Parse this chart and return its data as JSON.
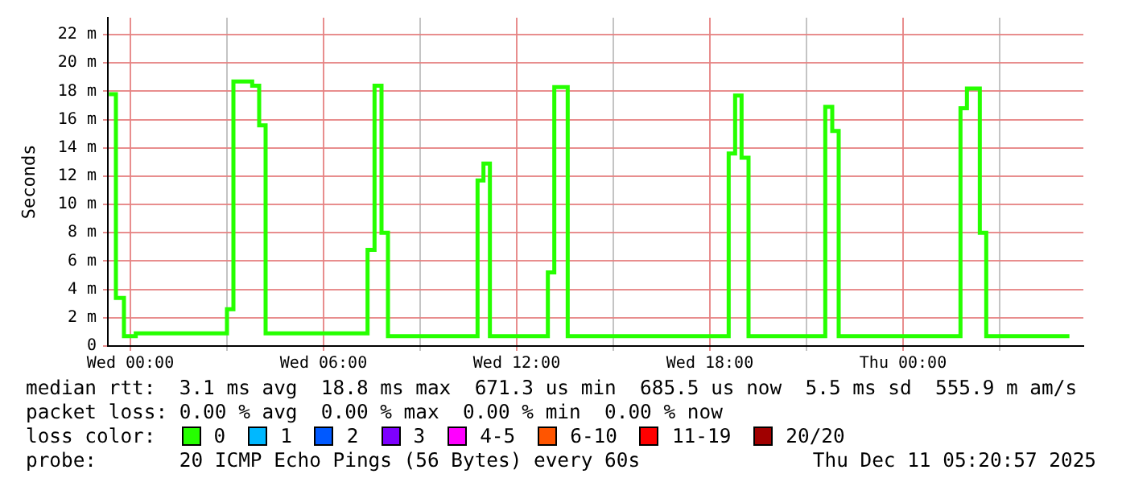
{
  "chart_data": {
    "type": "step",
    "ylabel": "Seconds",
    "legend_title": "loss color:",
    "legend": "bottom",
    "grid": true,
    "marker": "none",
    "line_style": "solid",
    "xlim": [
      "2025-12-09T23:18",
      "2025-12-11T05:36"
    ],
    "ylim": [
      0,
      23.2
    ],
    "xticks": [
      {
        "value": "2025-12-10T00:00",
        "label": "Wed 00:00"
      },
      {
        "value": "2025-12-10T03:00",
        "label": null
      },
      {
        "value": "2025-12-10T06:00",
        "label": "Wed 06:00"
      },
      {
        "value": "2025-12-10T09:00",
        "label": null
      },
      {
        "value": "2025-12-10T12:00",
        "label": "Wed 12:00"
      },
      {
        "value": "2025-12-10T15:00",
        "label": null
      },
      {
        "value": "2025-12-10T18:00",
        "label": "Wed 18:00"
      },
      {
        "value": "2025-12-10T21:00",
        "label": null
      },
      {
        "value": "2025-12-11T00:00",
        "label": "Thu 00:00"
      },
      {
        "value": "2025-12-11T03:00",
        "label": null
      }
    ],
    "yticks": [
      {
        "value": 0,
        "label": "0"
      },
      {
        "value": 2,
        "label": "2 m"
      },
      {
        "value": 4,
        "label": "4 m"
      },
      {
        "value": 6,
        "label": "6 m"
      },
      {
        "value": 8,
        "label": "8 m"
      },
      {
        "value": 10,
        "label": "10 m"
      },
      {
        "value": 12,
        "label": "12 m"
      },
      {
        "value": 14,
        "label": "14 m"
      },
      {
        "value": 16,
        "label": "16 m"
      },
      {
        "value": 18,
        "label": "18 m"
      },
      {
        "value": 20,
        "label": "20 m"
      },
      {
        "value": 22,
        "label": "22 m"
      }
    ],
    "x": [
      "2025-12-09T23:20",
      "2025-12-09T23:33",
      "2025-12-09T23:48",
      "2025-12-10T00:10",
      "2025-12-10T03:00",
      "2025-12-10T03:12",
      "2025-12-10T03:47",
      "2025-12-10T04:00",
      "2025-12-10T04:12",
      "2025-12-10T07:22",
      "2025-12-10T07:35",
      "2025-12-10T07:48",
      "2025-12-10T08:00",
      "2025-12-10T10:47",
      "2025-12-10T10:58",
      "2025-12-10T11:10",
      "2025-12-10T12:58",
      "2025-12-10T13:10",
      "2025-12-10T13:35",
      "2025-12-10T18:35",
      "2025-12-10T18:47",
      "2025-12-10T18:59",
      "2025-12-10T19:12",
      "2025-12-10T21:35",
      "2025-12-10T21:48",
      "2025-12-10T22:00",
      "2025-12-11T01:47",
      "2025-12-11T01:59",
      "2025-12-11T02:23",
      "2025-12-11T02:35",
      "2025-12-11T05:10"
    ],
    "series": [
      {
        "name": "0",
        "color": "#26ff00",
        "values": [
          17.8,
          3.4,
          0.7,
          0.9,
          2.6,
          18.7,
          18.4,
          15.6,
          0.9,
          6.8,
          18.4,
          8.0,
          0.7,
          11.7,
          12.9,
          0.7,
          5.2,
          18.3,
          0.7,
          13.6,
          17.7,
          13.3,
          0.7,
          16.9,
          15.2,
          0.7,
          16.8,
          18.2,
          8.0,
          0.7,
          0.7
        ]
      },
      {
        "name": "1",
        "color": "#00b8ff",
        "values": [
          null,
          null,
          null,
          null,
          null,
          null,
          null,
          null,
          null,
          null,
          null,
          null,
          null,
          null,
          null,
          null,
          null,
          null,
          null,
          null,
          null,
          null,
          null,
          null,
          null,
          null,
          null,
          null,
          null,
          null,
          null
        ]
      },
      {
        "name": "2",
        "color": "#0059ff",
        "values": [
          null,
          null,
          null,
          null,
          null,
          null,
          null,
          null,
          null,
          null,
          null,
          null,
          null,
          null,
          null,
          null,
          null,
          null,
          null,
          null,
          null,
          null,
          null,
          null,
          null,
          null,
          null,
          null,
          null,
          null,
          null
        ]
      },
      {
        "name": "3",
        "color": "#7e00ff",
        "values": [
          null,
          null,
          null,
          null,
          null,
          null,
          null,
          null,
          null,
          null,
          null,
          null,
          null,
          null,
          null,
          null,
          null,
          null,
          null,
          null,
          null,
          null,
          null,
          null,
          null,
          null,
          null,
          null,
          null,
          null,
          null
        ]
      },
      {
        "name": "4-5",
        "color": "#ff00ff",
        "values": [
          null,
          null,
          null,
          null,
          null,
          null,
          null,
          null,
          null,
          null,
          null,
          null,
          null,
          null,
          null,
          null,
          null,
          null,
          null,
          null,
          null,
          null,
          null,
          null,
          null,
          null,
          null,
          null,
          null,
          null,
          null
        ]
      },
      {
        "name": "6-10",
        "color": "#ff5500",
        "values": [
          null,
          null,
          null,
          null,
          null,
          null,
          null,
          null,
          null,
          null,
          null,
          null,
          null,
          null,
          null,
          null,
          null,
          null,
          null,
          null,
          null,
          null,
          null,
          null,
          null,
          null,
          null,
          null,
          null,
          null,
          null
        ]
      },
      {
        "name": "11-19",
        "color": "#ff0000",
        "values": [
          null,
          null,
          null,
          null,
          null,
          null,
          null,
          null,
          null,
          null,
          null,
          null,
          null,
          null,
          null,
          null,
          null,
          null,
          null,
          null,
          null,
          null,
          null,
          null,
          null,
          null,
          null,
          null,
          null,
          null,
          null
        ]
      },
      {
        "name": "20/20",
        "color": "#a00000",
        "values": [
          null,
          null,
          null,
          null,
          null,
          null,
          null,
          null,
          null,
          null,
          null,
          null,
          null,
          null,
          null,
          null,
          null,
          null,
          null,
          null,
          null,
          null,
          null,
          null,
          null,
          null,
          null,
          null,
          null,
          null,
          null
        ]
      }
    ],
    "annotations": [
      "median rtt:  3.1 ms avg  18.8 ms max  671.3 us min  685.5 us now  5.5 ms sd  555.9 m am/s",
      "packet loss: 0.00 % avg  0.00 % max  0.00 % min  0.00 % now",
      "probe:       20 ICMP Echo Pings (56 Bytes) every 60s",
      "Thu Dec 11 05:20:57 2025"
    ]
  }
}
